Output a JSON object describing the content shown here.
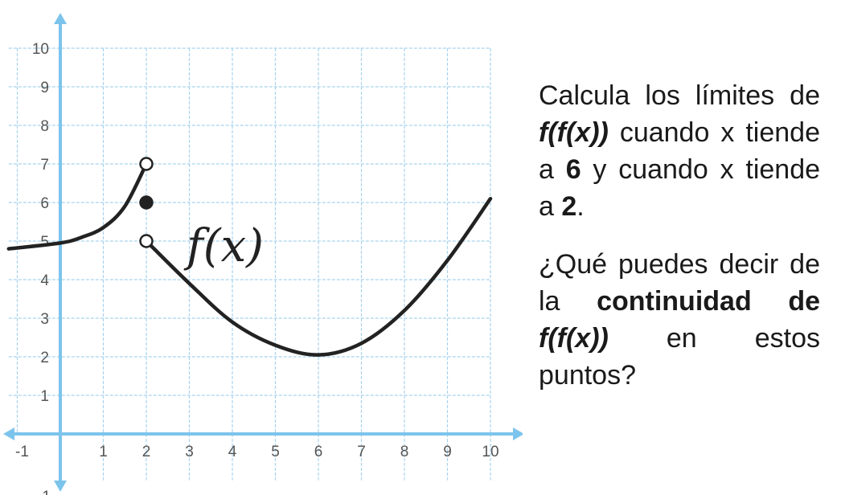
{
  "chart_data": {
    "type": "line",
    "function_label": "f(x)",
    "xlim": [
      -1,
      10
    ],
    "ylim": [
      -1,
      10
    ],
    "x_ticks": [
      "-1",
      "1",
      "2",
      "3",
      "4",
      "5",
      "6",
      "7",
      "8",
      "9",
      "10"
    ],
    "y_ticks": [
      "1",
      "2",
      "3",
      "4",
      "5",
      "6",
      "7",
      "8",
      "9",
      "10"
    ],
    "y_neg_label": "-1",
    "grid": true,
    "series": [
      {
        "x": [
          -1.2,
          0,
          0.5,
          1,
          1.5,
          2
        ],
        "y": [
          4.8,
          4.95,
          5.1,
          5.35,
          5.9,
          7
        ]
      },
      {
        "x": [
          2,
          3,
          4,
          5,
          6,
          7,
          8,
          9,
          10
        ],
        "y": [
          5,
          3.9,
          2.9,
          2.3,
          2.05,
          2.35,
          3.2,
          4.5,
          6.1
        ]
      }
    ],
    "points": [
      {
        "x": 2,
        "y": 7,
        "filled": false
      },
      {
        "x": 2,
        "y": 6,
        "filled": true
      },
      {
        "x": 2,
        "y": 5,
        "filled": false
      }
    ]
  },
  "text": {
    "p1": {
      "a": "Calcula los límites de ",
      "b": "f(f(x))",
      "c": " cuando x tiende a ",
      "d": "6",
      "e": " y cuando x tiende a ",
      "f": "2",
      "g": "."
    },
    "p2": {
      "a": "¿Qué puedes decir de la ",
      "b": "continuidad",
      "c": "de ",
      "d": "f(f(x))",
      "e": " en estos puntos?"
    }
  },
  "colors": {
    "axis": "#7cc4ec",
    "grid": "#a9d4ee",
    "curve": "#222222"
  }
}
